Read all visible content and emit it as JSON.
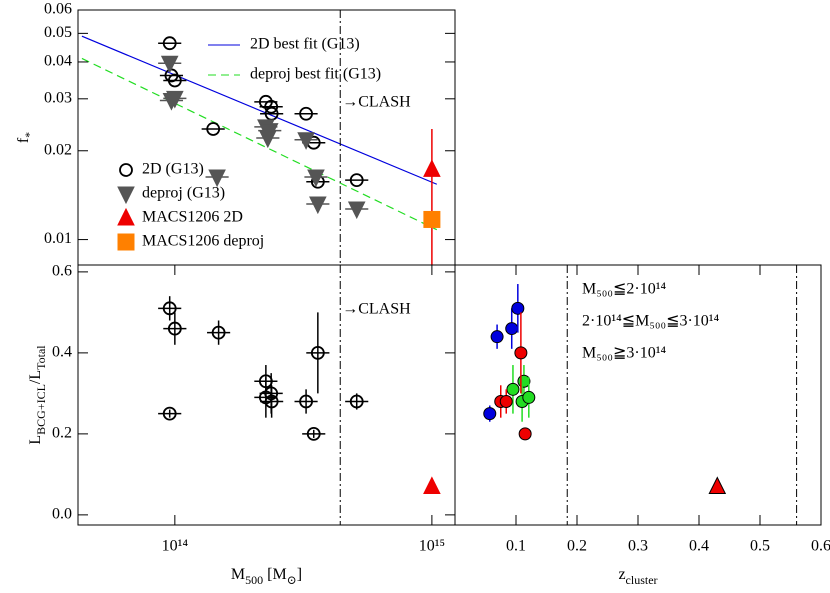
{
  "chart_data": [
    {
      "type": "scatter",
      "xscale": "log",
      "yscale": "log",
      "xlim": [
        42000000000000.0,
        1230000000000000.0
      ],
      "ylim": [
        0.0082,
        0.06
      ],
      "yticks": [
        0.01,
        0.02,
        0.03,
        0.04,
        0.05,
        0.06
      ],
      "ylabel": {
        "parts": [
          "f",
          "*"
        ],
        "sub": [
          false,
          true
        ]
      },
      "annotation": "→CLASH",
      "vline": 440000000000000.0,
      "lines": [
        {
          "name": "2D best fit (G13)",
          "color": "#0000dd",
          "dash": false,
          "x": [
            43500000000000.0,
            1045000000000000.0
          ],
          "y": [
            0.0489,
            0.0154
          ]
        },
        {
          "name": "deproj best fit (G13)",
          "color": "#22dd22",
          "dash": true,
          "x": [
            43500000000000.0,
            1045000000000000.0
          ],
          "y": [
            0.0411,
            0.0108
          ]
        }
      ],
      "series": [
        {
          "name": "2D (G13)",
          "color": "#000000",
          "facecolor": "none",
          "marker": "circle",
          "x_error_dex": 0.045,
          "x": [
            95500000000000.0,
            97000000000000.0,
            100000000000000.0,
            141000000000000.0,
            226000000000000.0,
            237000000000000.0,
            238000000000000.0,
            324000000000000.0,
            347000000000000.0,
            360000000000000.0,
            510000000000000.0
          ],
          "y": [
            0.0463,
            0.036,
            0.0346,
            0.0237,
            0.0293,
            0.0282,
            0.0267,
            0.0267,
            0.0213,
            0.0157,
            0.0159
          ]
        },
        {
          "name": "deproj (G13)",
          "color": "#555555",
          "facecolor": "#555555",
          "marker": "triangle-down",
          "x_error_dex": 0.045,
          "x": [
            95500000000000.0,
            97000000000000.0,
            100000000000000.0,
            146000000000000.0,
            226000000000000.0,
            234000000000000.0,
            230000000000000.0,
            324000000000000.0,
            354000000000000.0,
            360000000000000.0,
            510000000000000.0
          ],
          "y": [
            0.0396,
            0.0296,
            0.0301,
            0.0163,
            0.0241,
            0.0234,
            0.0221,
            0.0218,
            0.0163,
            0.0132,
            0.0127
          ]
        },
        {
          "name": "MACS1206 2D",
          "color": "#ee0000",
          "facecolor": "#ee0000",
          "marker": "triangle",
          "x": [
            1000000000000000.0
          ],
          "y": [
            0.0173
          ],
          "error_low": [
            0.0095
          ],
          "error_high": [
            0.0064
          ]
        },
        {
          "name": "MACS1206 deproj",
          "color": "#ff8000",
          "facecolor": "#ff8000",
          "marker": "square",
          "x": [
            1000000000000000.0
          ],
          "y": [
            0.0117
          ]
        }
      ]
    },
    {
      "type": "scatter",
      "xscale": "log",
      "yscale": "linear",
      "xlim": [
        42000000000000.0,
        1230000000000000.0
      ],
      "ylim": [
        -0.025,
        0.617
      ],
      "xticks": [
        {
          "value": 100000000000000.0,
          "label": "10¹⁴"
        },
        {
          "value": 1000000000000000.0,
          "label": "10¹⁵"
        }
      ],
      "yticks": [
        {
          "value": 0,
          "label": "0.0"
        },
        0.2,
        0.4,
        0.6
      ],
      "xlabel": {
        "parts": [
          "M",
          "500",
          " [M",
          "⊙",
          "]"
        ],
        "sub": [
          false,
          true,
          false,
          true,
          false
        ]
      },
      "ylabel": {
        "parts": [
          "L",
          "BCG+ICL",
          "/L",
          "Total"
        ],
        "sub": [
          false,
          true,
          false,
          true
        ]
      },
      "annotation": "→CLASH",
      "vline": 440000000000000.0,
      "series": [
        {
          "color": "#000000",
          "facecolor": "none",
          "marker": "circle",
          "x_error_dex": 0.045,
          "x": [
            95500000000000.0,
            100000000000000.0,
            148000000000000.0,
            95500000000000.0,
            226000000000000.0,
            226000000000000.0,
            237000000000000.0,
            238000000000000.0,
            324000000000000.0,
            360000000000000.0,
            347000000000000.0,
            510000000000000.0
          ],
          "y": [
            0.51,
            0.46,
            0.45,
            0.25,
            0.33,
            0.29,
            0.3,
            0.28,
            0.28,
            0.4,
            0.2,
            0.28
          ],
          "errors": [
            0.03,
            0.04,
            0.03,
            0.01,
            0.04,
            0.05,
            0.05,
            0.04,
            0.03,
            0.1,
            0.01,
            0.02
          ]
        },
        {
          "color": "#ee0000",
          "facecolor": "#ee0000",
          "marker": "triangle",
          "x": [
            1000000000000000.0
          ],
          "y": [
            0.07
          ]
        }
      ]
    },
    {
      "type": "scatter",
      "xscale": "linear",
      "yscale": "linear",
      "xlim": [
        0,
        0.6
      ],
      "ylim": [
        -0.025,
        0.617
      ],
      "xticks": [
        0.1,
        0.2,
        0.3,
        0.4,
        0.5,
        0.6
      ],
      "xlabel": {
        "parts": [
          "z",
          "cluster"
        ],
        "sub": [
          false,
          true
        ]
      },
      "vlines": [
        0.184,
        0.56
      ],
      "series": [
        {
          "name": "M₅₀₀≦2·10¹⁴",
          "color": "#0000dd",
          "facecolor": "#0000dd",
          "marker": "circle",
          "x": [
            0.057,
            0.069,
            0.093,
            0.103
          ],
          "y": [
            0.25,
            0.44,
            0.46,
            0.51
          ],
          "errors": [
            0.02,
            0.03,
            0.05,
            0.06
          ]
        },
        {
          "name": "2·10¹⁴≦M₅₀₀≦3·10¹⁴",
          "color": "#22dd22",
          "facecolor": "#22dd22",
          "marker": "circle",
          "x": [
            0.095,
            0.113,
            0.11,
            0.121
          ],
          "y": [
            0.31,
            0.33,
            0.28,
            0.29
          ],
          "errors": [
            0.06,
            0.04,
            0.05,
            0.05
          ]
        },
        {
          "name": "M₅₀₀≧3·10¹⁴",
          "color": "#ee0000",
          "facecolor": "#ee0000",
          "marker": "circle",
          "x": [
            0.075,
            0.084,
            0.108,
            0.115
          ],
          "y": [
            0.28,
            0.28,
            0.4,
            0.2
          ],
          "errors": [
            0.04,
            0.03,
            0.1,
            0.01
          ]
        },
        {
          "color": "#ee0000",
          "facecolor": "#ee0000",
          "marker": "triangle",
          "x": [
            0.43
          ],
          "y": [
            0.07
          ]
        }
      ]
    }
  ]
}
